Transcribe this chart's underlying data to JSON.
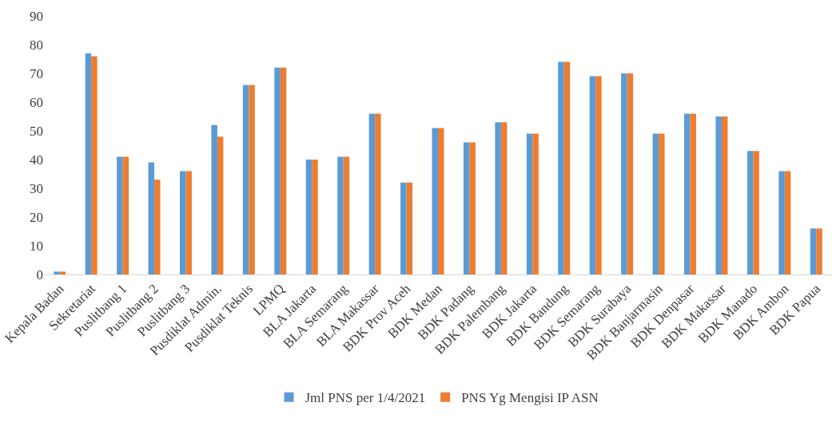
{
  "chart_data": {
    "type": "bar",
    "categories": [
      "Kepala Badan",
      "Sekretariat",
      "Puslitbang 1",
      "Puslitbang 2",
      "Puslitbang 3",
      "Pusdiklat Admin.",
      "Pusdiklat Teknis",
      "LPMQ",
      "BLA Jakarta",
      "BLA Semarang",
      "BLA Makassar",
      "BDK Prov Aceh",
      "BDK Medan",
      "BDK Padang",
      "BDK Palembang",
      "BDK Jakarta",
      "BDK Bandung",
      "BDK Semarang",
      "BDK Surabaya",
      "BDK Banjarmasin",
      "BDK Denpasar",
      "BDK Makassar",
      "BDK Manado",
      "BDK Ambon",
      "BDK Papua"
    ],
    "series": [
      {
        "name": "Jml PNS per 1/4/2021",
        "color": "#5b9bd5",
        "values": [
          1,
          77,
          41,
          39,
          36,
          52,
          66,
          72,
          40,
          41,
          56,
          32,
          51,
          46,
          53,
          49,
          74,
          69,
          70,
          49,
          56,
          55,
          43,
          36,
          16
        ]
      },
      {
        "name": "PNS Yg Mengisi IP ASN",
        "color": "#ed7d31",
        "values": [
          1,
          76,
          41,
          33,
          36,
          48,
          66,
          72,
          40,
          41,
          56,
          32,
          51,
          46,
          53,
          49,
          74,
          69,
          70,
          49,
          56,
          55,
          43,
          36,
          16
        ]
      }
    ],
    "ylim": [
      0,
      90
    ],
    "yticks": [
      0,
      10,
      20,
      30,
      40,
      50,
      60,
      70,
      80,
      90
    ],
    "grid": false,
    "legend": "bottom"
  }
}
